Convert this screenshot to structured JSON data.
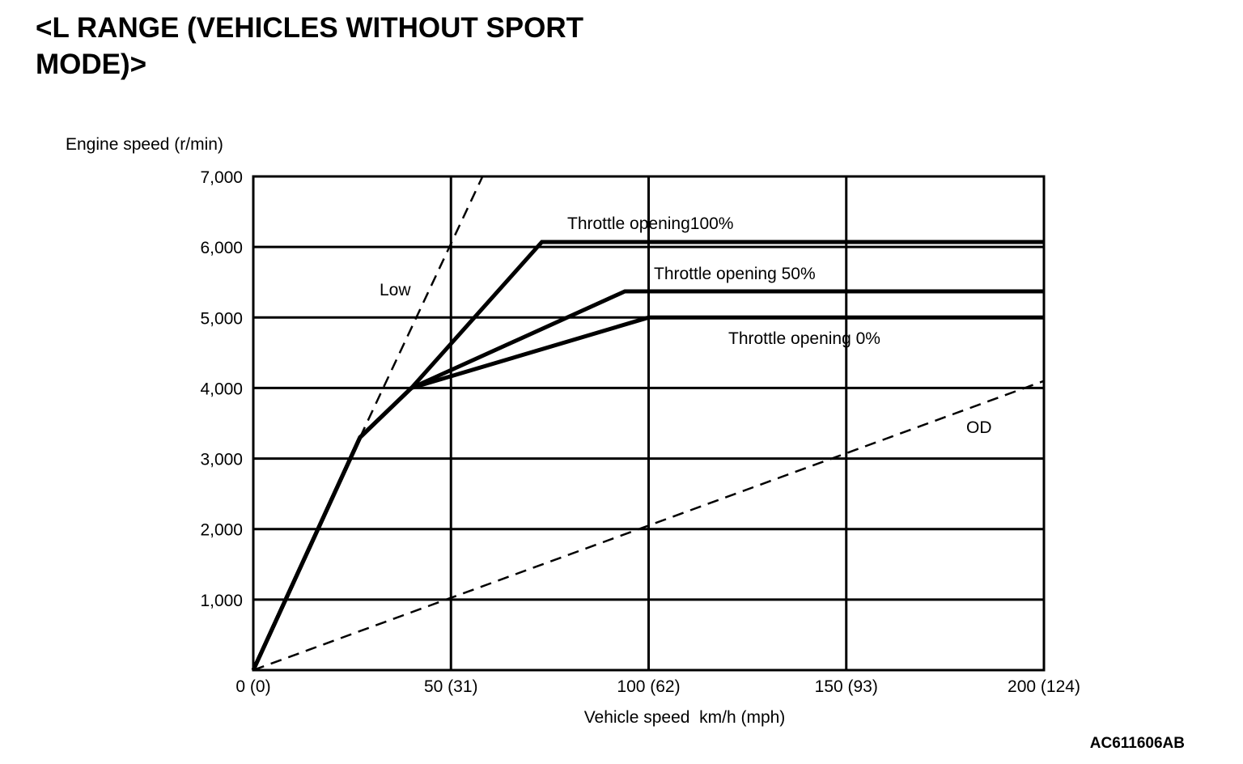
{
  "chart_data": {
    "type": "line",
    "title": "<L RANGE (VEHICLES WITHOUT SPORT MODE)>",
    "xlabel": "Vehicle speed  km/h (mph)",
    "ylabel": "Engine speed (r/min)",
    "xlim": [
      0,
      200
    ],
    "ylim": [
      0,
      7000
    ],
    "x_ticks": [
      {
        "value": 0,
        "label": "0 (0)"
      },
      {
        "value": 50,
        "label": "50 (31)"
      },
      {
        "value": 100,
        "label": "100 (62)"
      },
      {
        "value": 150,
        "label": "150 (93)"
      },
      {
        "value": 200,
        "label": "200 (124)"
      }
    ],
    "y_ticks": [
      {
        "value": 1000,
        "label": "1,000"
      },
      {
        "value": 2000,
        "label": "2,000"
      },
      {
        "value": 3000,
        "label": "3,000"
      },
      {
        "value": 4000,
        "label": "4,000"
      },
      {
        "value": 5000,
        "label": "5,000"
      },
      {
        "value": 6000,
        "label": "6,000"
      },
      {
        "value": 7000,
        "label": "7,000"
      }
    ],
    "grid": true,
    "series": [
      {
        "name": "Throttle opening100%",
        "style": "solid",
        "points": [
          [
            0,
            0
          ],
          [
            27,
            3300
          ],
          [
            40,
            4000
          ],
          [
            73,
            6070
          ],
          [
            200,
            6070
          ]
        ]
      },
      {
        "name": "Throttle opening 50%",
        "style": "solid",
        "points": [
          [
            0,
            0
          ],
          [
            27,
            3300
          ],
          [
            40,
            4000
          ],
          [
            94,
            5370
          ],
          [
            200,
            5370
          ]
        ]
      },
      {
        "name": "Throttle opening 0%",
        "style": "solid",
        "points": [
          [
            0,
            0
          ],
          [
            27,
            3300
          ],
          [
            40,
            4000
          ],
          [
            100,
            5000
          ],
          [
            200,
            5000
          ]
        ]
      },
      {
        "name": "Low",
        "style": "dashed",
        "points": [
          [
            27,
            3300
          ],
          [
            58,
            7000
          ]
        ]
      },
      {
        "name": "OD",
        "style": "dashed",
        "points": [
          [
            0,
            0
          ],
          [
            200,
            4100
          ]
        ]
      }
    ],
    "annotations": [
      {
        "text": "Throttle opening100%",
        "series": 0
      },
      {
        "text": "Throttle opening 50%",
        "series": 1
      },
      {
        "text": "Throttle opening 0%",
        "series": 2
      },
      {
        "text": "Low",
        "series": 3
      },
      {
        "text": "OD",
        "series": 4
      }
    ]
  },
  "figure_code": "AC611606AB"
}
